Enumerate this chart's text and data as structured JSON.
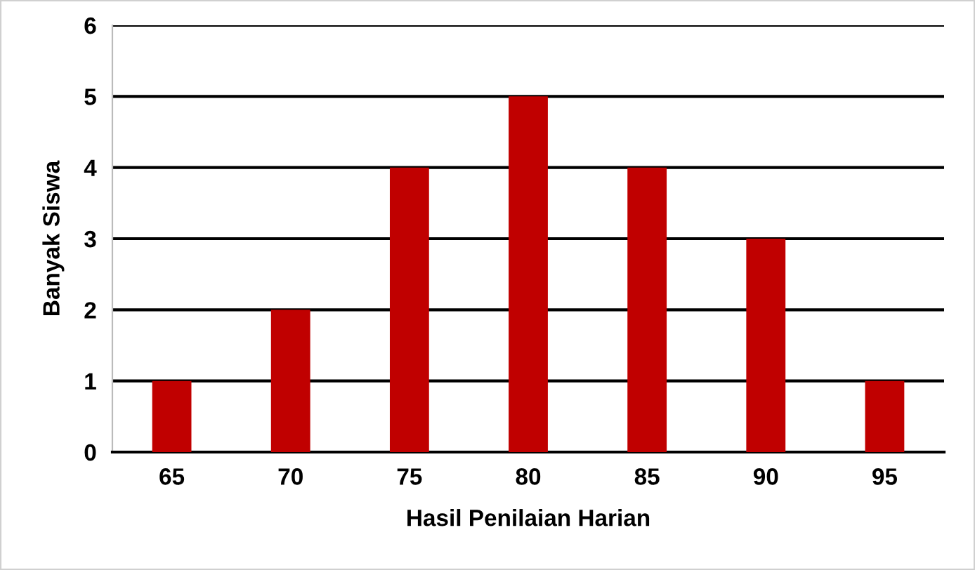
{
  "chart_data": {
    "type": "bar",
    "xlabel": "Hasil Penilaian Harian",
    "ylabel": "Banyak Siswa",
    "categories": [
      "65",
      "70",
      "75",
      "80",
      "85",
      "90",
      "95"
    ],
    "values": [
      1,
      2,
      4,
      5,
      4,
      3,
      1
    ],
    "color": "#c00000",
    "ylim": [
      0,
      6
    ],
    "yticks": [
      0,
      1,
      2,
      3,
      4,
      5,
      6
    ],
    "grid": "y",
    "legend": false
  }
}
